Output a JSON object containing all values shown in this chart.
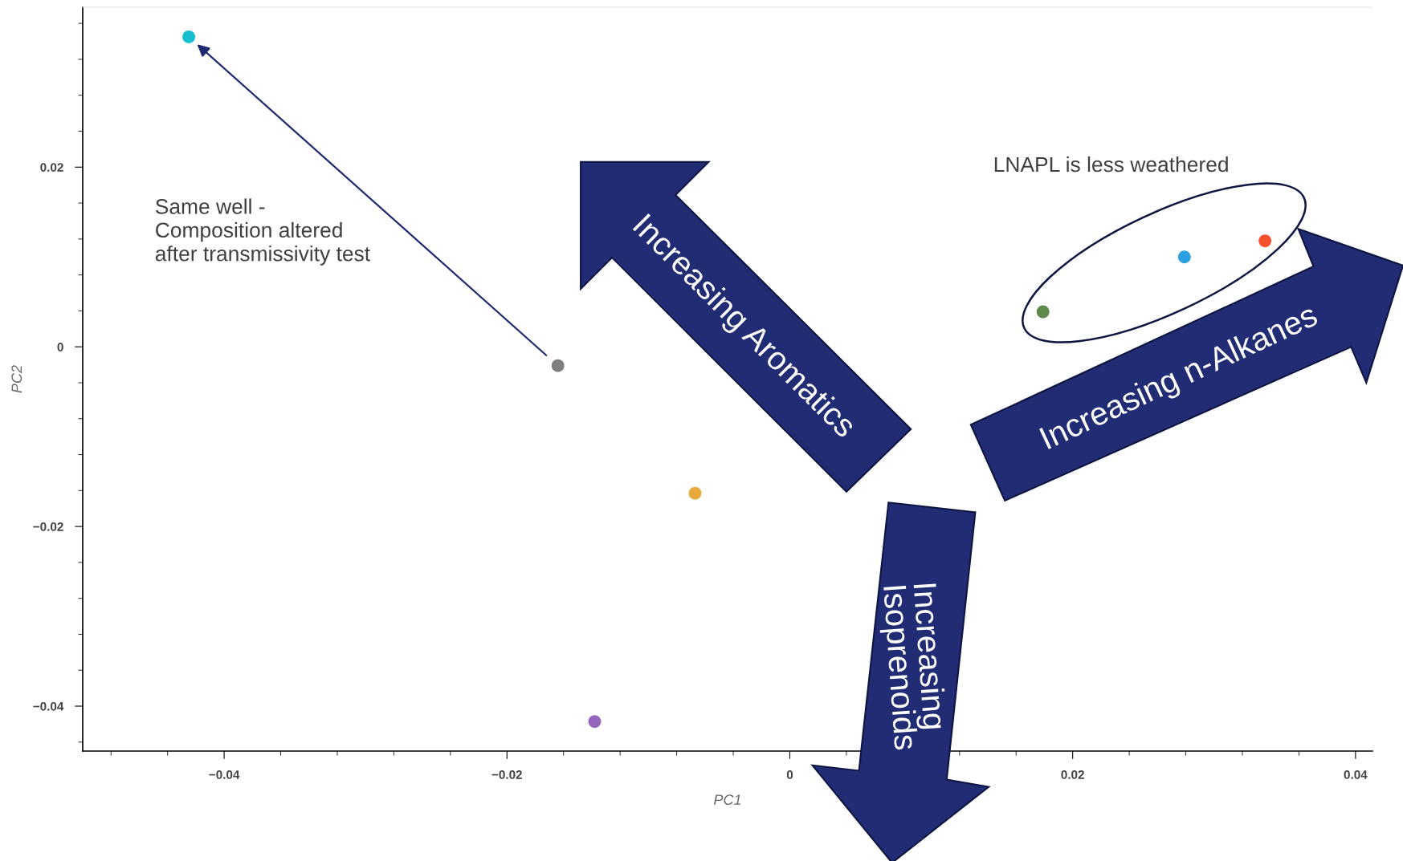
{
  "chart_data": {
    "type": "scatter",
    "xlabel": "PC1",
    "ylabel": "PC2",
    "x": [
      -0.0425,
      -0.0164,
      -0.0067,
      -0.0138,
      0.0179,
      0.0279,
      0.0336
    ],
    "values": [
      0.0345,
      -0.0021,
      -0.0163,
      -0.0417,
      0.0039,
      0.01,
      0.0118
    ],
    "colors": [
      "#17becf",
      "#7f7f7f",
      "#e6a93a",
      "#9467bd",
      "#5f8a4c",
      "#2ca0e0",
      "#f4512c"
    ],
    "marker": "circle",
    "grid": false,
    "legend": false,
    "xlim": [
      -0.05,
      0.0412
    ],
    "ylim": [
      -0.045,
      0.0378
    ],
    "xticks": [
      {
        "value": -0.048,
        "label": null
      },
      {
        "value": -0.044,
        "label": null
      },
      {
        "value": -0.04,
        "label": "−0.04"
      },
      {
        "value": -0.036,
        "label": null
      },
      {
        "value": -0.032,
        "label": null
      },
      {
        "value": -0.028,
        "label": null
      },
      {
        "value": -0.024,
        "label": null
      },
      {
        "value": -0.02,
        "label": "−0.02"
      },
      {
        "value": -0.016,
        "label": null
      },
      {
        "value": -0.012,
        "label": null
      },
      {
        "value": -0.008,
        "label": null
      },
      {
        "value": -0.004,
        "label": null
      },
      0,
      {
        "value": 0.004,
        "label": null
      },
      {
        "value": 0.008,
        "label": null
      },
      {
        "value": 0.012,
        "label": null
      },
      {
        "value": 0.016,
        "label": null
      },
      0.02,
      {
        "value": 0.024,
        "label": null
      },
      {
        "value": 0.028,
        "label": null
      },
      {
        "value": 0.032,
        "label": null
      },
      {
        "value": 0.036,
        "label": null
      },
      0.04
    ],
    "yticks": [
      {
        "value": -0.044,
        "label": null
      },
      {
        "value": -0.04,
        "label": "−0.04"
      },
      {
        "value": -0.036,
        "label": null
      },
      {
        "value": -0.032,
        "label": null
      },
      {
        "value": -0.028,
        "label": null
      },
      {
        "value": -0.024,
        "label": null
      },
      {
        "value": -0.02,
        "label": "−0.02"
      },
      {
        "value": -0.016,
        "label": null
      },
      {
        "value": -0.012,
        "label": null
      },
      {
        "value": -0.008,
        "label": null
      },
      {
        "value": -0.004,
        "label": null
      },
      0,
      {
        "value": 0.004,
        "label": null
      },
      {
        "value": 0.008,
        "label": null
      },
      {
        "value": 0.012,
        "label": null
      },
      {
        "value": 0.016,
        "label": null
      },
      0.02,
      {
        "value": 0.024,
        "label": null
      },
      {
        "value": 0.028,
        "label": null
      },
      {
        "value": 0.032,
        "label": null
      },
      {
        "value": 0.036,
        "label": null
      }
    ],
    "annotations": [
      "Same well -\nComposition altered\nafter transmissivity test",
      "LNAPL is less weathered",
      "Increasing Aromatics",
      "Increasing n-Alkanes",
      "Increasing\nIsoprenoids"
    ]
  }
}
